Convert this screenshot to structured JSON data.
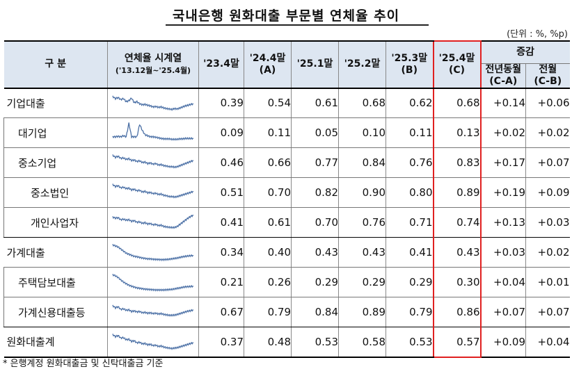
{
  "title": "국내은행 원화대출 부문별 연체율 추이",
  "unit": "(단위 : %, %p)",
  "header": {
    "category": "구   분",
    "series_title": "연체율 시계열",
    "series_range": "('13.12월~'25.4월)",
    "columns": [
      {
        "label": "'23.4말",
        "sub": ""
      },
      {
        "label": "'24.4말",
        "sub": "(A)"
      },
      {
        "label": "'25.1말",
        "sub": ""
      },
      {
        "label": "'25.2말",
        "sub": ""
      },
      {
        "label": "'25.3말",
        "sub": "(B)"
      },
      {
        "label": "'25.4말",
        "sub": "(C)"
      }
    ],
    "change_group": "증감",
    "change_cols": [
      {
        "label": "전년동월",
        "sub": "(C-A)"
      },
      {
        "label": "전월",
        "sub": "(C-B)"
      }
    ]
  },
  "rows": [
    {
      "label": "기업대출",
      "level": 0,
      "values": [
        "0.39",
        "0.54",
        "0.61",
        "0.68",
        "0.62",
        "0.68"
      ],
      "changes": [
        "+0.14",
        "+0.06"
      ],
      "spark": [
        0.8,
        0.7,
        0.75,
        0.65,
        0.7,
        0.55,
        0.6,
        0.72,
        0.5,
        0.55,
        0.45,
        0.4,
        0.42,
        0.38,
        0.35,
        0.3,
        0.32,
        0.28,
        0.3,
        0.25,
        0.22,
        0.2,
        0.18,
        0.22,
        0.2,
        0.25,
        0.3,
        0.35,
        0.38,
        0.42,
        0.45
      ]
    },
    {
      "label": "대기업",
      "level": 1,
      "values": [
        "0.09",
        "0.11",
        "0.05",
        "0.10",
        "0.11",
        "0.13"
      ],
      "changes": [
        "+0.02",
        "+0.02"
      ],
      "spark": [
        0.3,
        0.3,
        0.32,
        0.3,
        0.35,
        0.3,
        0.95,
        0.3,
        0.3,
        0.3,
        0.9,
        0.6,
        0.4,
        0.35,
        0.3,
        0.3,
        0.28,
        0.25,
        0.22,
        0.2,
        0.2,
        0.2,
        0.18,
        0.18,
        0.18,
        0.2,
        0.2,
        0.22,
        0.22,
        0.22,
        0.22
      ]
    },
    {
      "label": "중소기업",
      "level": 1,
      "values": [
        "0.46",
        "0.66",
        "0.77",
        "0.84",
        "0.76",
        "0.83"
      ],
      "changes": [
        "+0.17",
        "+0.07"
      ],
      "spark": [
        0.85,
        0.75,
        0.8,
        0.7,
        0.72,
        0.65,
        0.68,
        0.6,
        0.62,
        0.55,
        0.58,
        0.5,
        0.52,
        0.45,
        0.48,
        0.42,
        0.45,
        0.38,
        0.4,
        0.35,
        0.33,
        0.3,
        0.3,
        0.28,
        0.3,
        0.35,
        0.4,
        0.45,
        0.5,
        0.55,
        0.6
      ]
    },
    {
      "label": "중소법인",
      "level": 2,
      "values": [
        "0.51",
        "0.70",
        "0.82",
        "0.90",
        "0.80",
        "0.89"
      ],
      "changes": [
        "+0.19",
        "+0.09"
      ],
      "spark": [
        0.88,
        0.78,
        0.82,
        0.72,
        0.75,
        0.68,
        0.7,
        0.62,
        0.65,
        0.58,
        0.6,
        0.52,
        0.55,
        0.48,
        0.5,
        0.44,
        0.46,
        0.4,
        0.42,
        0.36,
        0.34,
        0.3,
        0.3,
        0.28,
        0.3,
        0.34,
        0.38,
        0.42,
        0.46,
        0.5,
        0.55
      ]
    },
    {
      "label": "개인사업자",
      "level": 2,
      "values": [
        "0.41",
        "0.61",
        "0.70",
        "0.76",
        "0.71",
        "0.74"
      ],
      "changes": [
        "+0.13",
        "+0.03"
      ],
      "spark": [
        0.75,
        0.7,
        0.72,
        0.62,
        0.65,
        0.6,
        0.62,
        0.55,
        0.58,
        0.5,
        0.52,
        0.45,
        0.48,
        0.42,
        0.44,
        0.38,
        0.4,
        0.34,
        0.36,
        0.3,
        0.28,
        0.26,
        0.25,
        0.25,
        0.3,
        0.4,
        0.5,
        0.6,
        0.7,
        0.78,
        0.85
      ]
    },
    {
      "label": "가계대출",
      "level": 0,
      "values": [
        "0.34",
        "0.40",
        "0.43",
        "0.43",
        "0.41",
        "0.43"
      ],
      "changes": [
        "+0.03",
        "+0.02"
      ],
      "spark": [
        0.85,
        0.8,
        0.75,
        0.65,
        0.55,
        0.45,
        0.4,
        0.35,
        0.3,
        0.28,
        0.25,
        0.22,
        0.2,
        0.18,
        0.18,
        0.16,
        0.15,
        0.15,
        0.14,
        0.14,
        0.15,
        0.16,
        0.18,
        0.2,
        0.22,
        0.25,
        0.28,
        0.3,
        0.32,
        0.33,
        0.34
      ]
    },
    {
      "label": "주택담보대출",
      "level": 1,
      "values": [
        "0.21",
        "0.26",
        "0.29",
        "0.29",
        "0.29",
        "0.30"
      ],
      "changes": [
        "+0.04",
        "+0.01"
      ],
      "spark": [
        0.85,
        0.8,
        0.72,
        0.6,
        0.5,
        0.42,
        0.35,
        0.3,
        0.26,
        0.22,
        0.2,
        0.18,
        0.16,
        0.15,
        0.14,
        0.13,
        0.12,
        0.12,
        0.12,
        0.12,
        0.13,
        0.14,
        0.15,
        0.17,
        0.2,
        0.22,
        0.25,
        0.27,
        0.28,
        0.29,
        0.3
      ]
    },
    {
      "label": "가계신용대출등",
      "level": 1,
      "values": [
        "0.67",
        "0.79",
        "0.84",
        "0.89",
        "0.79",
        "0.86"
      ],
      "changes": [
        "+0.07",
        "+0.07"
      ],
      "spark": [
        0.8,
        0.7,
        0.75,
        0.62,
        0.65,
        0.58,
        0.6,
        0.52,
        0.55,
        0.5,
        0.52,
        0.46,
        0.48,
        0.44,
        0.46,
        0.42,
        0.44,
        0.4,
        0.42,
        0.38,
        0.36,
        0.34,
        0.34,
        0.35,
        0.38,
        0.42,
        0.46,
        0.5,
        0.54,
        0.56,
        0.6
      ]
    },
    {
      "label": "원화대출계",
      "level": 0,
      "values": [
        "0.37",
        "0.48",
        "0.53",
        "0.58",
        "0.53",
        "0.57"
      ],
      "changes": [
        "+0.09",
        "+0.04"
      ],
      "spark": [
        0.85,
        0.75,
        0.8,
        0.68,
        0.7,
        0.6,
        0.62,
        0.52,
        0.55,
        0.45,
        0.48,
        0.4,
        0.42,
        0.36,
        0.38,
        0.32,
        0.34,
        0.28,
        0.3,
        0.25,
        0.22,
        0.2,
        0.18,
        0.2,
        0.22,
        0.26,
        0.3,
        0.34,
        0.38,
        0.42,
        0.46
      ]
    }
  ],
  "note": "* 은행계정 원화대출금 및 신탁대출금 기준",
  "colors": {
    "header_bg": "#dde6f1",
    "spark_line": "#4a6fa5",
    "highlight_border": "#e02020"
  }
}
